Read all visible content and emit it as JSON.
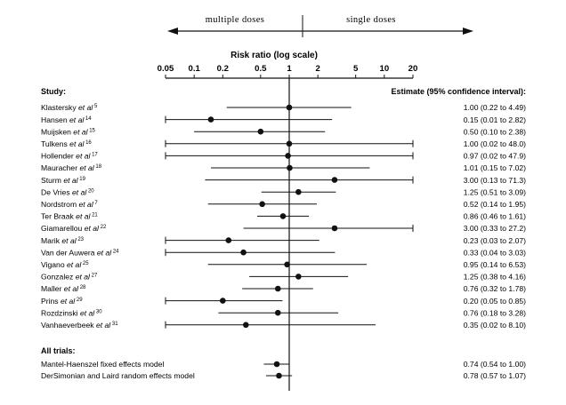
{
  "direction_labels": {
    "left": "multiple doses",
    "right": "single doses"
  },
  "chart_data": {
    "type": "forest",
    "xlabel": "Risk ratio (log scale)",
    "xscale": "log",
    "xlim": [
      0.05,
      20
    ],
    "xticks": [
      0.05,
      0.1,
      0.2,
      0.5,
      1,
      2,
      5,
      10,
      20
    ],
    "xtick_labels": [
      "0.05",
      "0.1",
      "0.2",
      "0.5",
      "1",
      "2",
      "5",
      "10",
      "20"
    ],
    "reference_line": 1,
    "left_header": "Study:",
    "right_header": "Estimate (95% confidence interval):",
    "studies": [
      {
        "name": "Klastersky",
        "et_al": "et al",
        "ref": "5",
        "estimate": 1.0,
        "lower": 0.22,
        "upper": 4.49,
        "text": "1.00 (0.22 to 4.49)"
      },
      {
        "name": "Hansen",
        "et_al": "et al",
        "ref": "14",
        "estimate": 0.15,
        "lower": 0.01,
        "upper": 2.82,
        "text": "0.15 (0.01 to 2.82)"
      },
      {
        "name": "Muijsken",
        "et_al": "et al",
        "ref": "15",
        "estimate": 0.5,
        "lower": 0.1,
        "upper": 2.38,
        "text": "0.50 (0.10 to 2.38)"
      },
      {
        "name": "Tulkens",
        "et_al": "et al",
        "ref": "16",
        "estimate": 1.0,
        "lower": 0.02,
        "upper": 48.0,
        "text": "1.00 (0.02 to 48.0)"
      },
      {
        "name": "Hollender",
        "et_al": "et al",
        "ref": "17",
        "estimate": 0.97,
        "lower": 0.02,
        "upper": 47.9,
        "text": "0.97 (0.02 to 47.9)"
      },
      {
        "name": "Mauracher",
        "et_al": "et al",
        "ref": "18",
        "estimate": 1.01,
        "lower": 0.15,
        "upper": 7.02,
        "text": "1.01 (0.15 to 7.02)"
      },
      {
        "name": "Sturm",
        "et_al": "et al",
        "ref": "19",
        "estimate": 3.0,
        "lower": 0.13,
        "upper": 71.3,
        "text": "3.00 (0.13 to 71.3)"
      },
      {
        "name": "De Vries",
        "et_al": "et al",
        "ref": "20",
        "estimate": 1.25,
        "lower": 0.51,
        "upper": 3.09,
        "text": "1.25 (0.51 to 3.09)"
      },
      {
        "name": "Nordstrom",
        "et_al": "et al",
        "ref": "7",
        "estimate": 0.52,
        "lower": 0.14,
        "upper": 1.95,
        "text": "0.52 (0.14 to 1.95)"
      },
      {
        "name": "Ter Braak",
        "et_al": "et al",
        "ref": "21",
        "estimate": 0.86,
        "lower": 0.46,
        "upper": 1.61,
        "text": "0.86 (0.46 to 1.61)"
      },
      {
        "name": "Giamarellou",
        "et_al": "et al",
        "ref": "22",
        "estimate": 3.0,
        "lower": 0.33,
        "upper": 27.2,
        "text": "3.00 (0.33 to 27.2)"
      },
      {
        "name": "Marik",
        "et_al": "et al",
        "ref": "23",
        "estimate": 0.23,
        "lower": 0.03,
        "upper": 2.07,
        "text": "0.23 (0.03 to 2.07)"
      },
      {
        "name": "Van der Auwera",
        "et_al": "et al",
        "ref": "24",
        "estimate": 0.33,
        "lower": 0.04,
        "upper": 3.03,
        "text": "0.33 (0.04 to 3.03)"
      },
      {
        "name": "Vigano",
        "et_al": "et al",
        "ref": "25",
        "estimate": 0.95,
        "lower": 0.14,
        "upper": 6.53,
        "text": "0.95 (0.14 to 6.53)"
      },
      {
        "name": "Gonzalez",
        "et_al": "et al",
        "ref": "27",
        "estimate": 1.25,
        "lower": 0.38,
        "upper": 4.16,
        "text": "1.25 (0.38 to 4.16)"
      },
      {
        "name": "Maller",
        "et_al": "et al",
        "ref": "28",
        "estimate": 0.76,
        "lower": 0.32,
        "upper": 1.78,
        "text": "0.76 (0.32 to 1.78)"
      },
      {
        "name": "Prins",
        "et_al": "et al",
        "ref": "29",
        "estimate": 0.2,
        "lower": 0.05,
        "upper": 0.85,
        "text": "0.20 (0.05 to 0.85)"
      },
      {
        "name": "Rozdzinski",
        "et_al": "et al",
        "ref": "30",
        "estimate": 0.76,
        "lower": 0.18,
        "upper": 3.28,
        "text": "0.76 (0.18 to 3.28)"
      },
      {
        "name": "Vanhaeverbeek",
        "et_al": "et al",
        "ref": "31",
        "estimate": 0.35,
        "lower": 0.02,
        "upper": 8.1,
        "text": "0.35 (0.02 to 8.10)"
      }
    ],
    "pooled_header": "All trials:",
    "pooled": [
      {
        "name": "Mantel-Haenszel fixed effects model",
        "estimate": 0.74,
        "lower": 0.54,
        "upper": 1.0,
        "text": "0.74 (0.54 to 1.00)"
      },
      {
        "name": "DerSimonian and Laird random effects model",
        "estimate": 0.78,
        "lower": 0.57,
        "upper": 1.07,
        "text": "0.78 (0.57 to 1.07)"
      }
    ]
  }
}
